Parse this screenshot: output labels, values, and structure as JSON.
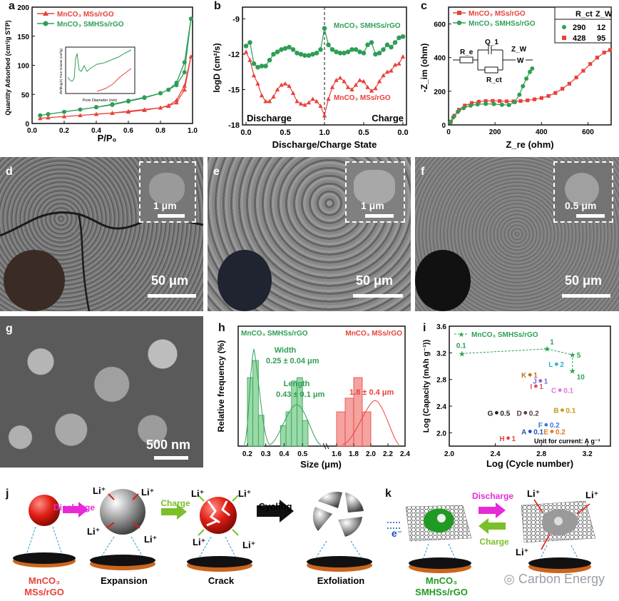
{
  "labels": {
    "a": "a",
    "b": "b",
    "c": "c",
    "d": "d",
    "e": "e",
    "f": "f",
    "g": "g",
    "h": "h",
    "i": "i",
    "j": "j",
    "k": "k"
  },
  "colors": {
    "red": "#e8413a",
    "green": "#2e9e55",
    "dark": "#111111"
  },
  "panel_a": {
    "chart_data": {
      "type": "line",
      "xlabel": "P/P₀",
      "ylabel": "Quantity Adsorbed (cm³/g STP)",
      "xlim": [
        0.0,
        1.0
      ],
      "ylim": [
        0,
        200
      ],
      "xticks": [
        "0.0",
        "0.2",
        "0.4",
        "0.6",
        "0.8",
        "1.0"
      ],
      "yticks": [
        "0",
        "50",
        "100",
        "150",
        "200"
      ],
      "series": [
        {
          "name": "MnCO₃ MSs/rGO",
          "color": "#e8413a",
          "x": [
            0.05,
            0.1,
            0.2,
            0.3,
            0.4,
            0.5,
            0.6,
            0.7,
            0.8,
            0.85,
            0.9,
            0.95,
            0.99,
            0.95,
            0.9,
            0.85,
            0.8,
            0.7,
            0.6,
            0.5,
            0.4
          ],
          "y": [
            9,
            10,
            12,
            14,
            16,
            18,
            20,
            23,
            27,
            31,
            40,
            65,
            115,
            58,
            36,
            30,
            27,
            24,
            21,
            18,
            16
          ]
        },
        {
          "name": "MnCO₃ SMHSs/rGO",
          "color": "#2e9e55",
          "x": [
            0.05,
            0.1,
            0.2,
            0.3,
            0.4,
            0.5,
            0.6,
            0.7,
            0.8,
            0.85,
            0.9,
            0.95,
            0.99,
            0.95,
            0.9,
            0.85,
            0.8,
            0.7,
            0.6,
            0.5,
            0.4
          ],
          "y": [
            14,
            16,
            20,
            24,
            28,
            32,
            38,
            44,
            52,
            58,
            70,
            105,
            180,
            88,
            66,
            58,
            52,
            45,
            39,
            33,
            28
          ]
        }
      ],
      "inset": {
        "xlabel": "Pore Diameter (nm)",
        "ylabel": "dV/dlog(D) Pore Volume (cm³/g)",
        "xticks": [
          "2",
          "4",
          "6",
          "8",
          "10"
        ]
      }
    }
  },
  "panel_b": {
    "chart_data": {
      "type": "scatter",
      "xlabel": "Discharge/Charge State",
      "ylabel": "logD (cm²/s)",
      "ylim": [
        -18,
        -8
      ],
      "xticks_left": [
        "0.0",
        "0.5",
        "1.0"
      ],
      "xticks_right": [
        "0.5",
        "0.0"
      ],
      "yticks": [
        "-9",
        "-12",
        "-15",
        "-18"
      ],
      "left_label": "Discharge",
      "right_label": "Charge",
      "series": [
        {
          "name": "MnCO₃ SMHSs/rGO",
          "color": "#2e9e55",
          "x": [
            0,
            0.05,
            0.1,
            0.15,
            0.2,
            0.25,
            0.3,
            0.35,
            0.4,
            0.45,
            0.5,
            0.55,
            0.6,
            0.65,
            0.7,
            0.75,
            0.8,
            0.85,
            0.9,
            0.95,
            1.0,
            1.05,
            1.1,
            1.15,
            1.2,
            1.25,
            1.3,
            1.35,
            1.4,
            1.45,
            1.5,
            1.55,
            1.6,
            1.65,
            1.7,
            1.75,
            1.8,
            1.85,
            1.9,
            1.95,
            2.0
          ],
          "y": [
            -11.3,
            -11.0,
            -12.8,
            -13.1,
            -13.0,
            -13.0,
            -12.5,
            -12.0,
            -11.8,
            -11.6,
            -11.5,
            -11.4,
            -11.6,
            -11.9,
            -12.0,
            -12.1,
            -12.1,
            -12.0,
            -11.9,
            -11.6,
            -9.8,
            -11.2,
            -11.6,
            -11.8,
            -11.9,
            -11.9,
            -11.8,
            -11.6,
            -11.6,
            -11.8,
            -11.9,
            -11.2,
            -11.0,
            -12.0,
            -11.9,
            -11.6,
            -11.2,
            -11.4,
            -11.0,
            -10.6,
            -10.5
          ]
        },
        {
          "name": "MnCO₃ MSs/rGO",
          "color": "#e8413a",
          "x": [
            0,
            0.05,
            0.1,
            0.15,
            0.2,
            0.25,
            0.3,
            0.35,
            0.4,
            0.45,
            0.5,
            0.55,
            0.6,
            0.65,
            0.7,
            0.75,
            0.8,
            0.85,
            0.9,
            0.95,
            1.0,
            1.05,
            1.1,
            1.15,
            1.2,
            1.25,
            1.3,
            1.35,
            1.4,
            1.45,
            1.5,
            1.55,
            1.6,
            1.65,
            1.7,
            1.75,
            1.8,
            1.85,
            1.9,
            1.95,
            2.0
          ],
          "y": [
            -11.8,
            -12.5,
            -13.8,
            -14.5,
            -15.5,
            -16.0,
            -16.0,
            -15.6,
            -15.0,
            -14.6,
            -14.5,
            -14.7,
            -15.3,
            -16.0,
            -16.2,
            -16.3,
            -16.1,
            -15.8,
            -16.0,
            -16.4,
            -17.2,
            -15.8,
            -14.8,
            -14.2,
            -14.0,
            -14.3,
            -14.8,
            -15.0,
            -14.6,
            -14.2,
            -14.3,
            -14.8,
            -15.1,
            -14.9,
            -14.3,
            -13.8,
            -13.5,
            -13.4,
            -12.9,
            -12.8,
            -12.2
          ]
        }
      ]
    }
  },
  "panel_c": {
    "chart_data": {
      "type": "scatter",
      "xlabel": "Z_re (ohm)",
      "ylabel": "-Z_im (ohm)",
      "xlim": [
        0,
        700
      ],
      "ylim": [
        0,
        700
      ],
      "xticks": [
        "0",
        "200",
        "400",
        "600"
      ],
      "yticks": [
        "0",
        "200",
        "400",
        "600"
      ],
      "series": [
        {
          "name": "MnCO₃ MSs/rGO",
          "color": "#e8413a",
          "x": [
            10,
            25,
            45,
            70,
            100,
            130,
            160,
            190,
            220,
            250,
            280,
            310,
            340,
            370,
            400,
            430,
            460,
            490,
            520,
            550,
            580,
            610,
            640,
            670,
            695
          ],
          "y": [
            20,
            55,
            90,
            115,
            130,
            138,
            142,
            143,
            142,
            140,
            140,
            142,
            146,
            152,
            160,
            172,
            190,
            215,
            245,
            282,
            322,
            362,
            400,
            430,
            445
          ]
        },
        {
          "name": "MnCO₃ SMHSs/rGO",
          "color": "#2e9e55",
          "x": [
            8,
            20,
            40,
            65,
            95,
            125,
            160,
            195,
            230,
            260,
            285,
            305,
            320,
            335,
            350,
            360
          ],
          "y": [
            15,
            45,
            78,
            100,
            115,
            122,
            125,
            124,
            120,
            118,
            135,
            180,
            230,
            275,
            315,
            335
          ]
        }
      ],
      "table": {
        "headers": [
          "",
          "R_ct",
          "Z_W"
        ],
        "rows": [
          [
            "290",
            "12"
          ],
          [
            "428",
            "95"
          ]
        ]
      },
      "circuit": {
        "re": "R_e",
        "q1": "Q_1",
        "rct": "R_ct",
        "zw": "Z_W"
      }
    }
  },
  "panel_d": {
    "scale_main": "50 μm",
    "scale_inset": "1 μm"
  },
  "panel_e": {
    "scale_main": "50 μm",
    "scale_inset": "1 μm"
  },
  "panel_f": {
    "scale_main": "50 μm",
    "scale_inset": "0.5 μm"
  },
  "panel_g": {
    "scale_main": "500 nm"
  },
  "panel_h": {
    "chart_data": {
      "type": "bar",
      "xlabel": "Size  (μm)",
      "ylabel": "Relative frequency (%)",
      "left_title": "MnCO₃ SMHSs/rGO",
      "right_title": "MnCO₃ MSs/rGO",
      "width_label": "Width",
      "width_value": "0.25 ± 0.04 μm",
      "length_label": "Length",
      "length_value": "0.43 ± 0.1 μm",
      "ms_value": "1.8 ± 0.4 μm",
      "xticks": [
        "0.2",
        "0.3",
        "0.4",
        "0.5",
        "1.6",
        "1.8",
        "2.0",
        "2.2",
        "2.4"
      ],
      "width_bins": {
        "x": [
          0.2,
          0.23,
          0.26
        ],
        "values": [
          40,
          50,
          18
        ]
      },
      "length_bins": {
        "x": [
          0.38,
          0.41,
          0.44,
          0.47,
          0.5
        ],
        "values": [
          12,
          20,
          38,
          40,
          15
        ]
      },
      "ms_bins": {
        "x": [
          1.6,
          1.7,
          1.8,
          1.9
        ],
        "values": [
          20,
          28,
          40,
          20
        ]
      }
    }
  },
  "panel_i": {
    "chart_data": {
      "type": "scatter",
      "xlabel": "Log (Cycle number)",
      "ylabel": "Log (Capacity (mAh g⁻¹))",
      "xlim": [
        2.0,
        3.4
      ],
      "ylim": [
        1.8,
        3.6
      ],
      "xticks": [
        "2.0",
        "2.4",
        "2.8",
        "3.2"
      ],
      "yticks": [
        "2.0",
        "2.4",
        "2.8",
        "3.2",
        "3.6"
      ],
      "legend": "MnCO₃ SMHSs/rGO",
      "unit_note": "Unit for current: A g⁻¹",
      "main_series": {
        "x": [
          2.11,
          2.85,
          3.07,
          3.07
        ],
        "y": [
          3.19,
          3.26,
          3.17,
          2.93
        ],
        "labels": [
          "0.1",
          "1",
          "5",
          "10"
        ]
      },
      "others": [
        {
          "id": "L",
          "rate": "2",
          "x": 2.95,
          "y": 3.03,
          "color": "#28b5c6"
        },
        {
          "id": "K",
          "rate": "1",
          "x": 2.72,
          "y": 2.87,
          "color": "#c2701c"
        },
        {
          "id": "J",
          "rate": "1",
          "x": 2.81,
          "y": 2.78,
          "color": "#8a5bd0"
        },
        {
          "id": "I",
          "rate": "1",
          "x": 2.77,
          "y": 2.7,
          "color": "#d9506a"
        },
        {
          "id": "C",
          "rate": "0.1",
          "x": 2.98,
          "y": 2.64,
          "color": "#e36fe0"
        },
        {
          "id": "B",
          "rate": "0.1",
          "x": 3.0,
          "y": 2.34,
          "color": "#c59a12"
        },
        {
          "id": "G",
          "rate": "0.5",
          "x": 2.43,
          "y": 2.3,
          "color": "#222222"
        },
        {
          "id": "D",
          "rate": "0.2",
          "x": 2.68,
          "y": 2.3,
          "color": "#5b3b3b"
        },
        {
          "id": "F",
          "rate": "0.2",
          "x": 2.86,
          "y": 2.12,
          "color": "#3a7bd5"
        },
        {
          "id": "A",
          "rate": "0.1",
          "x": 2.72,
          "y": 2.02,
          "color": "#1b55b3"
        },
        {
          "id": "E",
          "rate": "0.2",
          "x": 2.91,
          "y": 2.02,
          "color": "#e0781c"
        },
        {
          "id": "H",
          "rate": "1",
          "x": 2.53,
          "y": 1.92,
          "color": "#e8413a"
        }
      ]
    }
  },
  "panel_j": {
    "arrow_discharge": "Discharge",
    "arrow_charge": "Charge",
    "arrow_cycling": "Cycling",
    "li": "Li⁺",
    "sample": "MnCO₃",
    "sample2": "MSs/rGO",
    "stage_expansion": "Expansion",
    "stage_crack": "Crack",
    "stage_exfoliation": "Exfoliation"
  },
  "panel_k": {
    "arrow_discharge": "Discharge",
    "arrow_charge": "Charge",
    "electron": "e⁻",
    "li": "Li⁺",
    "sample": "MnCO₃",
    "sample2": "SMHSs/rGO"
  },
  "watermark": "Carbon Energy"
}
